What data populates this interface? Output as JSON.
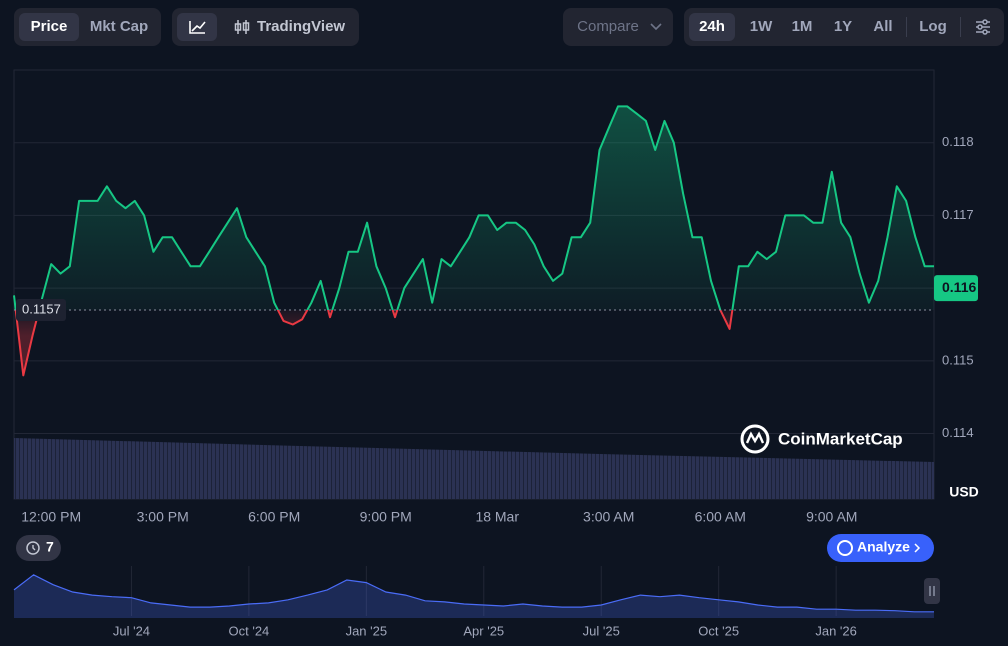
{
  "toolbar": {
    "price": "Price",
    "mkt_cap": "Mkt Cap",
    "tradingview": "TradingView",
    "compare": "Compare",
    "ranges": [
      "24h",
      "1W",
      "1M",
      "1Y",
      "All"
    ],
    "log": "Log"
  },
  "watermark": "CoinMarketCap",
  "history_count": 7,
  "analyze": "Analyze",
  "chart_data": [
    {
      "type": "line",
      "categories": [
        null,
        null,
        null,
        null,
        "12:00 PM",
        null,
        null,
        null,
        null,
        null,
        null,
        null,
        null,
        null,
        null,
        null,
        "3:00 PM",
        null,
        null,
        null,
        null,
        null,
        null,
        null,
        null,
        null,
        null,
        null,
        "6:00 PM",
        null,
        null,
        null,
        null,
        null,
        null,
        null,
        null,
        null,
        null,
        null,
        "9:00 PM",
        null,
        null,
        null,
        null,
        null,
        null,
        null,
        null,
        null,
        null,
        null,
        "18 Mar",
        null,
        null,
        null,
        null,
        null,
        null,
        null,
        null,
        null,
        null,
        null,
        "3:00 AM",
        null,
        null,
        null,
        null,
        null,
        null,
        null,
        null,
        null,
        null,
        null,
        "6:00 AM",
        null,
        null,
        null,
        null,
        null,
        null,
        null,
        null,
        null,
        null,
        null,
        "9:00 AM",
        null,
        null,
        null,
        null,
        null,
        null,
        null,
        null,
        null,
        null,
        null
      ],
      "values": [
        0.1159,
        0.1148,
        0.11535,
        0.11585,
        0.11633,
        0.1162,
        0.1163,
        0.1172,
        0.1172,
        0.1172,
        0.1174,
        0.1172,
        0.1171,
        0.1172,
        0.117,
        0.1165,
        0.1167,
        0.1167,
        0.1165,
        0.1163,
        0.1163,
        0.1165,
        0.1167,
        0.1169,
        0.1171,
        0.1167,
        0.1165,
        0.1163,
        0.1158,
        0.11555,
        0.1155,
        0.11557,
        0.1158,
        0.1161,
        0.1156,
        0.116,
        0.1165,
        0.1165,
        0.1169,
        0.1163,
        0.116,
        0.1156,
        0.116,
        0.1162,
        0.1164,
        0.1158,
        0.1164,
        0.1163,
        0.1165,
        0.1167,
        0.117,
        0.117,
        0.1168,
        0.1169,
        0.1169,
        0.1168,
        0.1166,
        0.1163,
        0.1161,
        0.1162,
        0.1167,
        0.1167,
        0.1169,
        0.1179,
        0.1182,
        0.1185,
        0.1185,
        0.1184,
        0.1183,
        0.1179,
        0.1183,
        0.118,
        0.1173,
        0.1167,
        0.1167,
        0.1161,
        0.1157,
        0.11544,
        0.1163,
        0.1163,
        0.1165,
        0.1164,
        0.1165,
        0.117,
        0.117,
        0.117,
        0.1169,
        0.1169,
        0.1176,
        0.1169,
        0.1167,
        0.1162,
        0.1158,
        0.1161,
        0.1167,
        0.1174,
        0.1172,
        0.1167,
        0.1163,
        0.1163
      ],
      "color": "#16c784",
      "below_color": "#ea3943",
      "baseline": 0.1157,
      "last_price": 0.116,
      "ylim": [
        0.1131,
        0.119
      ],
      "yticks": [
        0.114,
        0.115,
        0.116,
        0.117,
        0.118
      ],
      "grid": true,
      "y_unit": "USD"
    },
    {
      "type": "area",
      "categories": [
        null,
        null,
        null,
        null,
        null,
        null,
        "Jul '24",
        null,
        null,
        null,
        null,
        null,
        "Oct '24",
        null,
        null,
        null,
        null,
        null,
        "Jan '25",
        null,
        null,
        null,
        null,
        null,
        "Apr '25",
        null,
        null,
        null,
        null,
        null,
        "Jul '25",
        null,
        null,
        null,
        null,
        null,
        "Oct '25",
        null,
        null,
        null,
        null,
        null,
        "Jan '26",
        null,
        null,
        null,
        null,
        null
      ],
      "values": [
        0.54,
        0.83,
        0.64,
        0.5,
        0.44,
        0.41,
        0.39,
        0.29,
        0.25,
        0.21,
        0.21,
        0.23,
        0.27,
        0.29,
        0.35,
        0.44,
        0.54,
        0.73,
        0.68,
        0.5,
        0.44,
        0.33,
        0.31,
        0.27,
        0.25,
        0.23,
        0.27,
        0.23,
        0.21,
        0.21,
        0.25,
        0.35,
        0.44,
        0.41,
        0.44,
        0.39,
        0.35,
        0.31,
        0.25,
        0.21,
        0.21,
        0.17,
        0.17,
        0.15,
        0.15,
        0.14,
        0.12,
        0.12
      ],
      "color": "#4a6cf7",
      "ylim": [
        0,
        1
      ]
    }
  ]
}
